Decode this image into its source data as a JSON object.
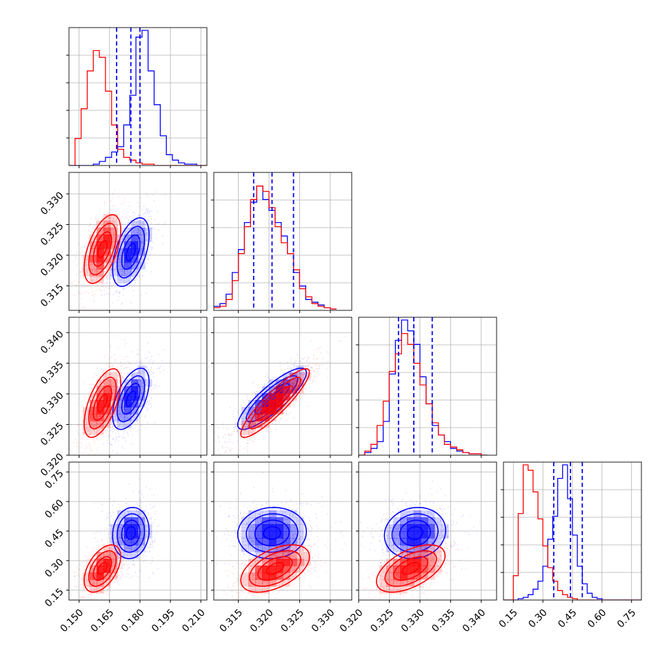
{
  "chart_data": {
    "type": "corner",
    "n_params": 4,
    "grid": true,
    "colors": {
      "blue": "#0000ff",
      "red": "#ff0000"
    },
    "series": [
      {
        "color": "blue",
        "mean": [
          0.1755,
          0.3205,
          0.3292,
          0.44
        ],
        "std": [
          0.0045,
          0.0028,
          0.0025,
          0.065
        ],
        "corr": [
          [
            1,
            0.5,
            0.55,
            0.1
          ],
          [
            0.5,
            1,
            0.85,
            0.05
          ],
          [
            0.55,
            0.85,
            1,
            0.1
          ],
          [
            0.1,
            0.05,
            0.1,
            1
          ]
        ]
      },
      {
        "color": "red",
        "mean": [
          0.1615,
          0.321,
          0.3285,
          0.26
        ],
        "std": [
          0.0045,
          0.0028,
          0.0028,
          0.06
        ],
        "corr": [
          [
            1,
            0.55,
            0.6,
            0.5
          ],
          [
            0.55,
            1,
            0.9,
            0.5
          ],
          [
            0.6,
            0.9,
            1,
            0.55
          ],
          [
            0.5,
            0.5,
            0.55,
            1
          ]
        ]
      }
    ],
    "quantile_lines": [
      [
        0.1685,
        0.1755,
        0.18
      ],
      [
        0.3175,
        0.3205,
        0.324
      ],
      [
        0.3265,
        0.329,
        0.332
      ],
      [
        0.355,
        0.44,
        0.5
      ]
    ],
    "hist": [
      {
        "edges_start": 0.145,
        "bin": 0.003,
        "blue": [
          0,
          0,
          0,
          0,
          1,
          3,
          6,
          10,
          14,
          30,
          52,
          95,
          100,
          70,
          45,
          22,
          8,
          4,
          2,
          1,
          1,
          0,
          0
        ],
        "red": [
          0,
          20,
          42,
          70,
          85,
          80,
          55,
          30,
          12,
          6,
          4,
          2,
          1,
          1,
          0,
          0,
          0,
          0,
          0,
          0,
          0,
          0,
          0
        ]
      },
      {
        "edges_start": 0.311,
        "bin": 0.001,
        "blue": [
          3,
          5,
          12,
          28,
          45,
          65,
          80,
          92,
          82,
          74,
          65,
          55,
          42,
          28,
          18,
          8,
          6,
          4,
          2,
          1
        ],
        "red": [
          2,
          3,
          8,
          22,
          42,
          62,
          82,
          92,
          88,
          76,
          62,
          50,
          42,
          30,
          16,
          10,
          5,
          3,
          2,
          1
        ]
      },
      {
        "edges_start": 0.32,
        "bin": 0.001,
        "blue": [
          0,
          2,
          5,
          10,
          25,
          60,
          85,
          100,
          92,
          82,
          58,
          38,
          22,
          15,
          10,
          5,
          3,
          2,
          1,
          1,
          0
        ],
        "red": [
          0,
          3,
          8,
          22,
          40,
          62,
          75,
          90,
          82,
          68,
          52,
          38,
          24,
          15,
          8,
          6,
          4,
          2,
          1,
          1,
          0
        ]
      },
      {
        "edges_start": 0.1,
        "bin": 0.025,
        "blue": [
          0,
          0,
          0,
          1,
          2,
          4,
          8,
          14,
          25,
          45,
          62,
          90,
          100,
          75,
          48,
          25,
          12,
          5,
          2,
          1,
          0,
          0,
          0,
          0,
          0,
          0,
          0,
          0
        ],
        "red": [
          0,
          0,
          18,
          64,
          100,
          96,
          80,
          60,
          40,
          24,
          14,
          7,
          4,
          2,
          1,
          0,
          0,
          0,
          0,
          0,
          0,
          0,
          0,
          0,
          0,
          0,
          0,
          0
        ]
      }
    ],
    "axes": [
      {
        "range": [
          0.145,
          0.213
        ],
        "ticks": [
          0.15,
          0.165,
          0.18,
          0.195,
          0.21
        ],
        "tick_labels": [
          "0.150",
          "0.165",
          "0.180",
          "0.195",
          "0.210"
        ]
      },
      {
        "range": [
          0.311,
          0.3335
        ],
        "ticks": [
          0.315,
          0.32,
          0.325,
          0.33
        ],
        "tick_labels": [
          "0.315",
          "0.320",
          "0.325",
          "0.330"
        ]
      },
      {
        "range": [
          0.32,
          0.3425
        ],
        "ticks": [
          0.32,
          0.325,
          0.33,
          0.335,
          0.34
        ],
        "tick_labels": [
          "0.320",
          "0.325",
          "0.330",
          "0.335",
          "0.340"
        ]
      },
      {
        "range": [
          0.1,
          0.8
        ],
        "ticks": [
          0.15,
          0.3,
          0.45,
          0.6,
          0.75
        ],
        "tick_labels": [
          "0.15",
          "0.30",
          "0.45",
          "0.60",
          "0.75"
        ]
      }
    ]
  }
}
